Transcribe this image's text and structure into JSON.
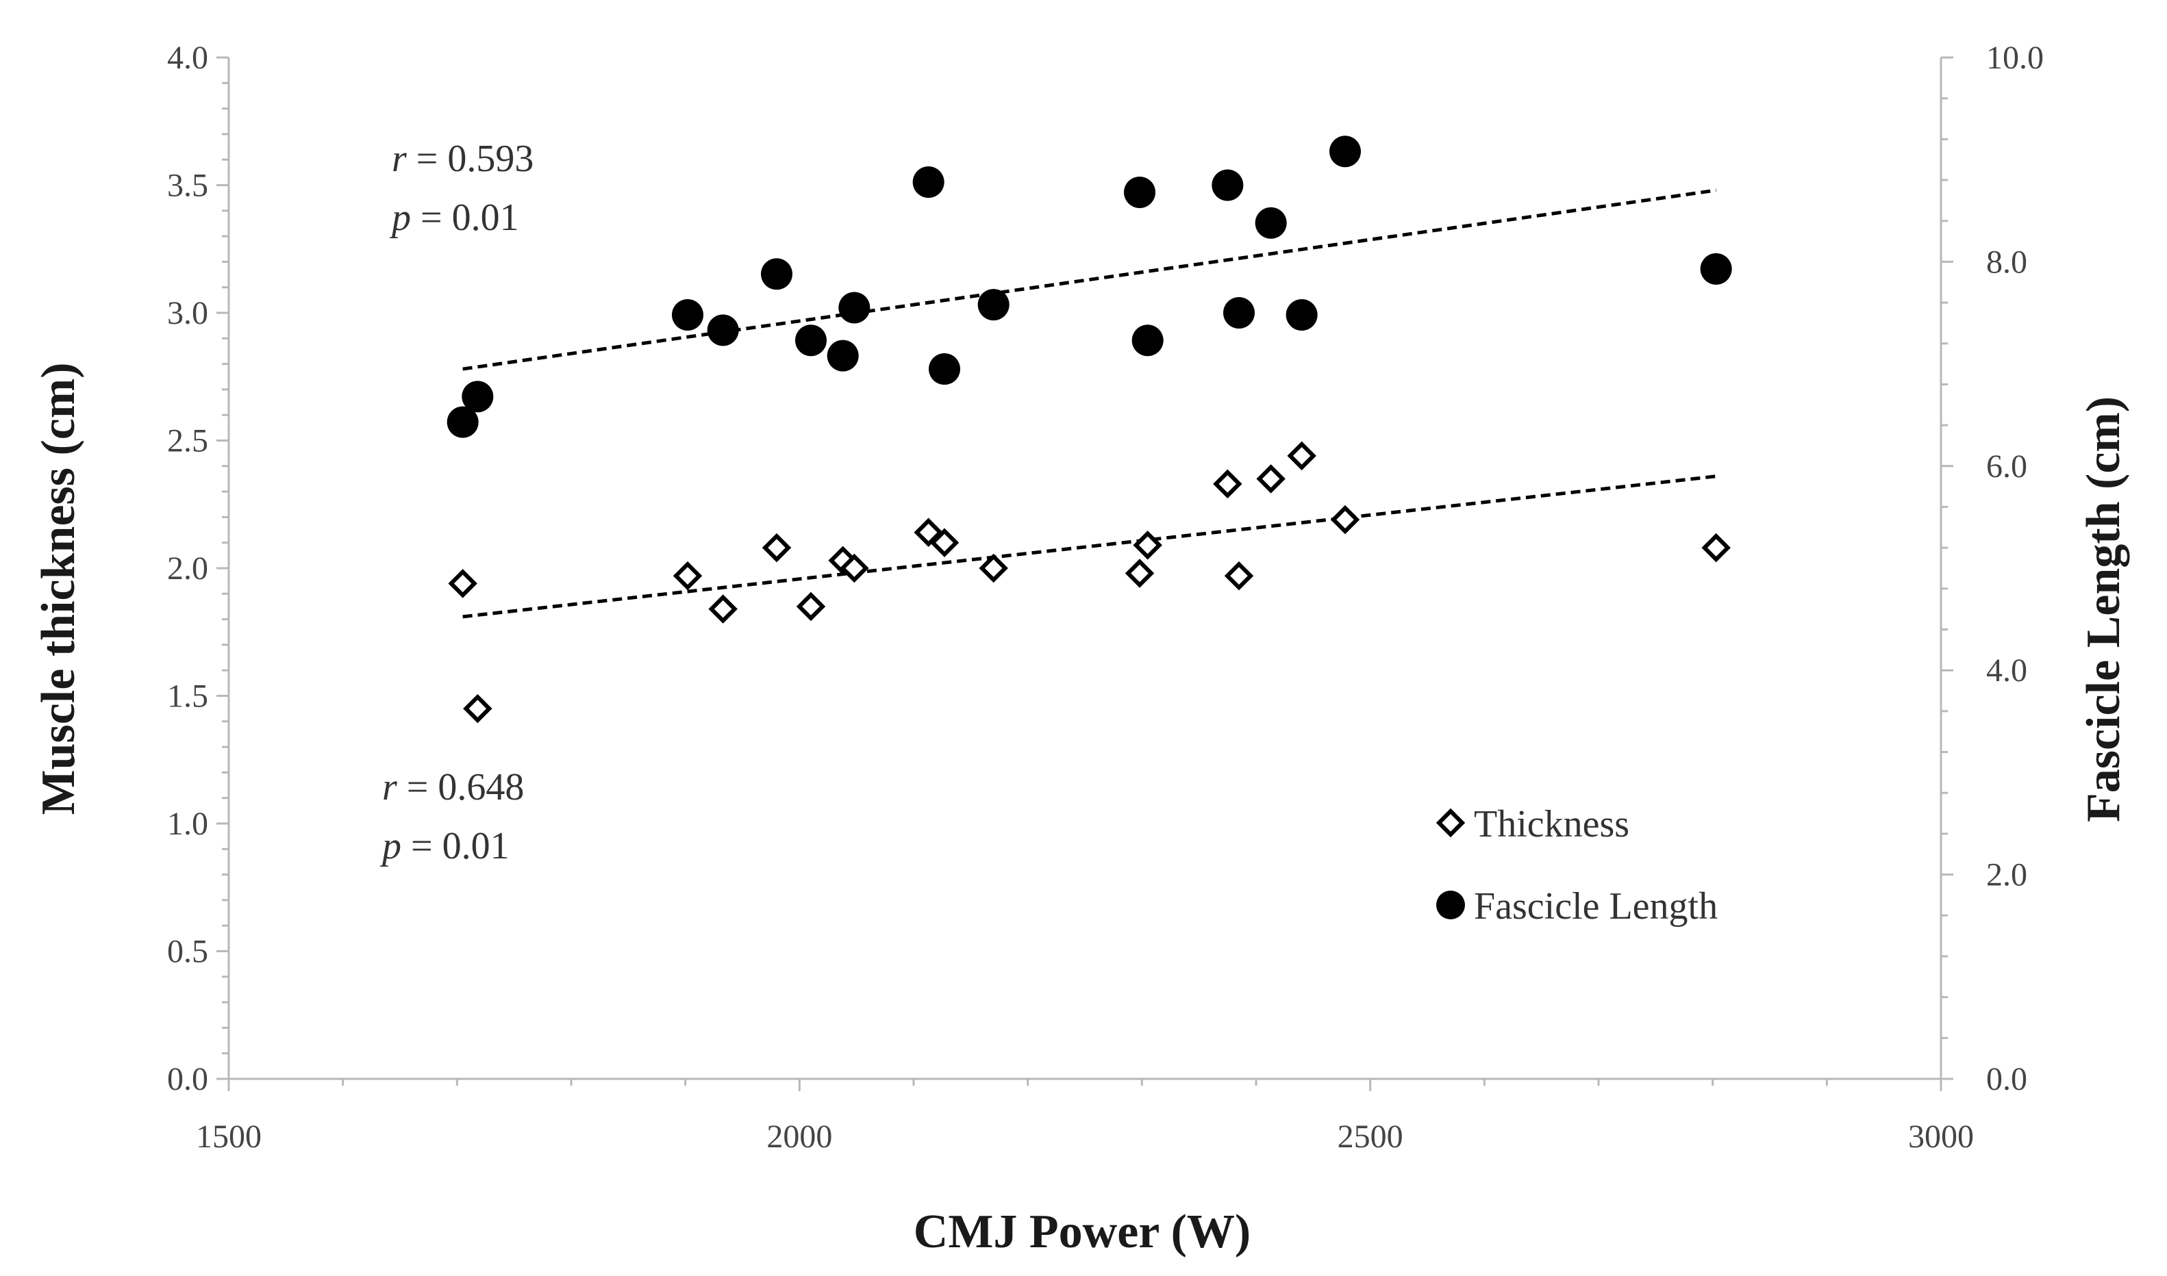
{
  "chart_data": {
    "type": "scatter",
    "title": "",
    "xlabel": "CMJ Power (W)",
    "ylabel": "Muscle thickness (cm)",
    "y2label": "Fascicle Length (cm)",
    "xlim": [
      1500,
      3000
    ],
    "ylim": [
      0.0,
      4.0
    ],
    "y2lim": [
      0.0,
      10.0
    ],
    "x_ticks": [
      "1500",
      "2000",
      "2500",
      "3000"
    ],
    "y_ticks": [
      "0.0",
      "0.5",
      "1.0",
      "1.5",
      "2.0",
      "2.5",
      "3.0",
      "3.5",
      "4.0"
    ],
    "y2_ticks": [
      "0.0",
      "2.0",
      "4.0",
      "6.0",
      "8.0",
      "10.0"
    ],
    "legend_position": "bottom-right",
    "series": [
      {
        "name": "Thickness",
        "marker": "diamond-open",
        "axis": "left",
        "points": [
          {
            "x": 1705,
            "y": 1.94
          },
          {
            "x": 1718,
            "y": 1.45
          },
          {
            "x": 1902,
            "y": 1.97
          },
          {
            "x": 1933,
            "y": 1.84
          },
          {
            "x": 1980,
            "y": 2.08
          },
          {
            "x": 2010,
            "y": 1.85
          },
          {
            "x": 2038,
            "y": 2.03
          },
          {
            "x": 2048,
            "y": 2.0
          },
          {
            "x": 2113,
            "y": 2.14
          },
          {
            "x": 2127,
            "y": 2.1
          },
          {
            "x": 2170,
            "y": 2.0
          },
          {
            "x": 2298,
            "y": 1.98
          },
          {
            "x": 2305,
            "y": 2.09
          },
          {
            "x": 2375,
            "y": 2.33
          },
          {
            "x": 2385,
            "y": 1.97
          },
          {
            "x": 2413,
            "y": 2.35
          },
          {
            "x": 2440,
            "y": 2.44
          },
          {
            "x": 2478,
            "y": 2.19
          },
          {
            "x": 2803,
            "y": 2.08
          }
        ],
        "trendline": {
          "x": [
            1705,
            2803
          ],
          "y": [
            1.81,
            2.36
          ]
        }
      },
      {
        "name": "Fascicle Length",
        "marker": "circle-filled",
        "axis": "right",
        "points": [
          {
            "x": 1705,
            "y": 6.43
          },
          {
            "x": 1718,
            "y": 6.68
          },
          {
            "x": 1902,
            "y": 7.48
          },
          {
            "x": 1933,
            "y": 7.33
          },
          {
            "x": 1980,
            "y": 7.88
          },
          {
            "x": 2010,
            "y": 7.23
          },
          {
            "x": 2038,
            "y": 7.08
          },
          {
            "x": 2048,
            "y": 7.55
          },
          {
            "x": 2113,
            "y": 8.78
          },
          {
            "x": 2127,
            "y": 6.95
          },
          {
            "x": 2170,
            "y": 7.58
          },
          {
            "x": 2298,
            "y": 8.68
          },
          {
            "x": 2305,
            "y": 7.23
          },
          {
            "x": 2375,
            "y": 8.75
          },
          {
            "x": 2385,
            "y": 7.5
          },
          {
            "x": 2413,
            "y": 8.38
          },
          {
            "x": 2440,
            "y": 7.48
          },
          {
            "x": 2478,
            "y": 9.08
          },
          {
            "x": 2803,
            "y": 7.93
          }
        ],
        "trendline": {
          "x": [
            1705,
            2803
          ],
          "y": [
            6.95,
            8.7
          ]
        }
      }
    ],
    "annotations": {
      "fascicle": {
        "r_symbol": "r",
        "r_text": " = 0.593",
        "p_symbol": "p",
        "p_text": " = 0.01"
      },
      "thickness": {
        "r_symbol": "r",
        "r_text": " = 0.648",
        "p_symbol": "p",
        "p_text": " = 0.01"
      }
    }
  }
}
